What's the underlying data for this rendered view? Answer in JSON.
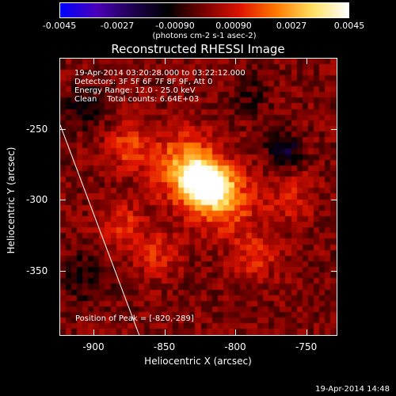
{
  "colorbar": {
    "ticks": [
      "-0.0045",
      "-0.0027",
      "-0.00090",
      "0.00090",
      "0.0027",
      "0.0045"
    ],
    "range": [
      -0.0045,
      0.0045
    ]
  },
  "title": "Reconstructed RHESSI Image",
  "info": {
    "time_range": "19-Apr-2014 03:20:28.000 to 03:22:12.000",
    "detectors": "Detectors: 3F 5F 6F 7F 8F 9F, Att 0",
    "energy": "Energy Range: 12.0 - 25.0 keV",
    "clean": "Clean    Total counts: 6.64E+03",
    "peak": "Position of Peak = [-820,-289]"
  },
  "timestamp": "19-Apr-2014 14:48",
  "chart_data": {
    "type": "heatmap",
    "title": "Reconstructed RHESSI Image",
    "xlabel": "Heliocentric X (arcsec)",
    "ylabel": "Heliocentric Y (arcsec)",
    "colorbar_units": "(photons cm-2 s-1 asec-2)",
    "xlim": [
      -924,
      -728
    ],
    "ylim": [
      -396,
      -200
    ],
    "xticks": [
      "-900",
      "-850",
      "-800",
      "-750"
    ],
    "xtick_values": [
      -900,
      -850,
      -800,
      -750
    ],
    "yticks": [
      "-250",
      "-300",
      "-350"
    ],
    "ytick_values": [
      -250,
      -300,
      -350
    ],
    "peak_position": [
      -820,
      -289
    ],
    "sources": [
      {
        "x": -820,
        "y": -289,
        "amplitude": 0.0045,
        "sigma": 10
      },
      {
        "x": -835,
        "y": -278,
        "amplitude": 0.0028,
        "sigma": 16
      },
      {
        "x": -808,
        "y": -300,
        "amplitude": 0.0022,
        "sigma": 16
      },
      {
        "x": -875,
        "y": -262,
        "amplitude": 0.0016,
        "sigma": 11
      },
      {
        "x": -880,
        "y": -318,
        "amplitude": 0.0013,
        "sigma": 11
      },
      {
        "x": -855,
        "y": -340,
        "amplitude": 0.0012,
        "sigma": 11
      },
      {
        "x": -785,
        "y": -340,
        "amplitude": 0.0012,
        "sigma": 12
      },
      {
        "x": -760,
        "y": -300,
        "amplitude": 0.001,
        "sigma": 12
      },
      {
        "x": -765,
        "y": -265,
        "amplitude": -0.0018,
        "sigma": 8
      },
      {
        "x": -905,
        "y": -235,
        "amplitude": -0.0012,
        "sigma": 10
      },
      {
        "x": -905,
        "y": -355,
        "amplitude": -0.001,
        "sigma": 12
      },
      {
        "x": -790,
        "y": -225,
        "amplitude": -0.0007,
        "sigma": 10
      }
    ],
    "limb_line": [
      [
        -924,
        -247
      ],
      [
        -868,
        -396
      ]
    ],
    "colormap": [
      "#0000ff",
      "#4a00b8",
      "#1e0050",
      "#000000",
      "#7a0000",
      "#e01400",
      "#ff7a00",
      "#ffe060",
      "#ffffff"
    ]
  }
}
